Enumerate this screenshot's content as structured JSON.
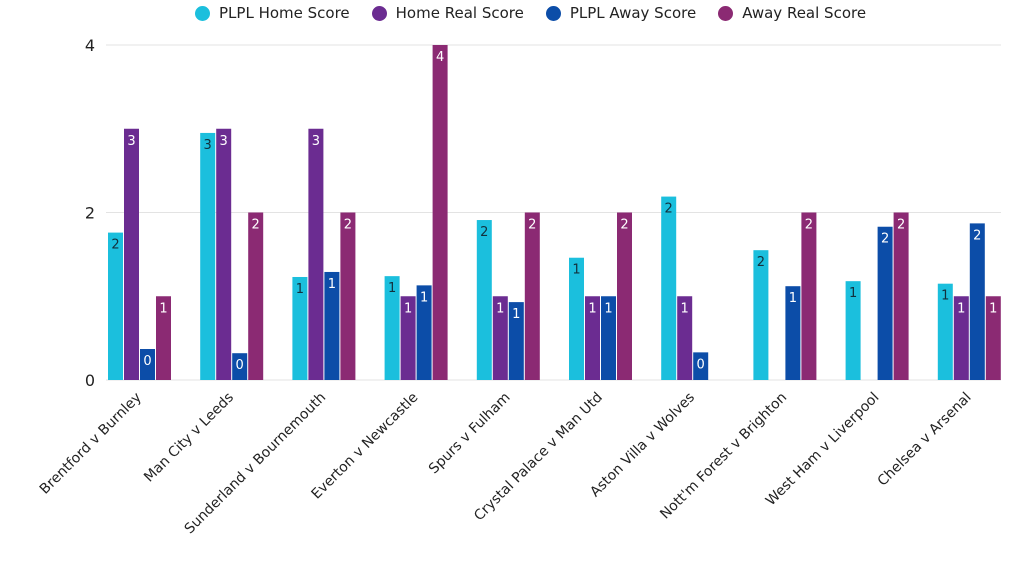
{
  "chart_data": {
    "type": "bar",
    "title": "",
    "xlabel": "",
    "ylabel": "",
    "ylim": [
      0,
      4
    ],
    "yticks": [
      0,
      2,
      4
    ],
    "grid": true,
    "legend_position": "top-center",
    "categories": [
      "Brentford v Burnley",
      "Man City v Leeds",
      "Sunderland v Bournemouth",
      "Everton v Newcastle",
      "Spurs v Fulham",
      "Crystal Palace v Man Utd",
      "Aston Villa v Wolves",
      "Nott'm Forest v Brighton",
      "West Ham v Liverpool",
      "Chelsea v Arsenal"
    ],
    "series": [
      {
        "name": "PLPL Home Score",
        "color": "#1BBFDD",
        "label_color": "#12303d",
        "values": [
          1.76,
          2.95,
          1.23,
          1.24,
          1.91,
          1.46,
          2.19,
          1.55,
          1.18,
          1.15
        ],
        "labels": [
          "2",
          "3",
          "1",
          "1",
          "2",
          "1",
          "2",
          "2",
          "1",
          "1"
        ]
      },
      {
        "name": "Home Real Score",
        "color": "#6B2C91",
        "label_color": "#ffffff",
        "values": [
          3,
          3,
          3,
          1,
          1,
          1,
          1,
          0,
          0,
          1
        ],
        "labels": [
          "3",
          "3",
          "3",
          "1",
          "1",
          "1",
          "1",
          "",
          "",
          "1"
        ]
      },
      {
        "name": "PLPL Away Score",
        "color": "#0C4DA8",
        "label_color": "#ffffff",
        "values": [
          0.37,
          0.32,
          1.29,
          1.13,
          0.93,
          1.0,
          0.33,
          1.12,
          1.83,
          1.87
        ],
        "labels": [
          "0",
          "0",
          "1",
          "1",
          "1",
          "1",
          "0",
          "1",
          "2",
          "2"
        ]
      },
      {
        "name": "Away Real Score",
        "color": "#8B2A73",
        "label_color": "#ffffff",
        "values": [
          1,
          2,
          2,
          4,
          2,
          2,
          0,
          2,
          2,
          1
        ],
        "labels": [
          "1",
          "2",
          "2",
          "4",
          "2",
          "2",
          "",
          "2",
          "2",
          "1"
        ]
      }
    ]
  }
}
